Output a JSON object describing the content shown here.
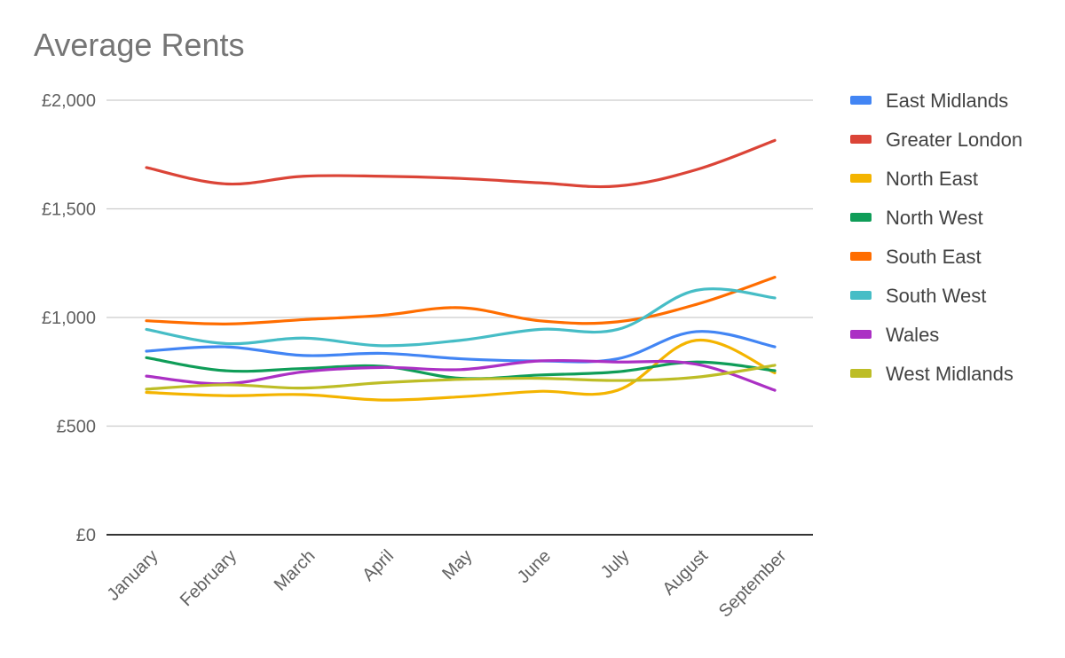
{
  "chart_data": {
    "type": "line",
    "title": "Average Rents",
    "xlabel": "",
    "ylabel": "",
    "ylim": [
      0,
      2000
    ],
    "yticks": [
      {
        "value": 0,
        "label": "£0"
      },
      {
        "value": 500,
        "label": "£500"
      },
      {
        "value": 1000,
        "label": "£1,000"
      },
      {
        "value": 1500,
        "label": "£1,500"
      },
      {
        "value": 2000,
        "label": "£2,000"
      }
    ],
    "categories": [
      "January",
      "February",
      "March",
      "April",
      "May",
      "June",
      "July",
      "August",
      "September"
    ],
    "grid": true,
    "legend_position": "right",
    "smooth": true,
    "series": [
      {
        "name": "East Midlands",
        "color": "#4285F4",
        "values": [
          845,
          865,
          825,
          835,
          810,
          800,
          810,
          935,
          865
        ]
      },
      {
        "name": "Greater London",
        "color": "#DB4437",
        "values": [
          1690,
          1615,
          1650,
          1650,
          1640,
          1620,
          1605,
          1680,
          1815
        ]
      },
      {
        "name": "North East",
        "color": "#F4B400",
        "values": [
          655,
          640,
          645,
          620,
          635,
          660,
          665,
          895,
          745
        ]
      },
      {
        "name": "North West",
        "color": "#0F9D58",
        "values": [
          815,
          755,
          765,
          775,
          720,
          735,
          750,
          795,
          755
        ]
      },
      {
        "name": "South East",
        "color": "#FF6D00",
        "values": [
          985,
          970,
          990,
          1010,
          1045,
          985,
          980,
          1060,
          1185
        ]
      },
      {
        "name": "South West",
        "color": "#46BDC6",
        "values": [
          945,
          880,
          905,
          870,
          895,
          945,
          945,
          1125,
          1090
        ]
      },
      {
        "name": "Wales",
        "color": "#AB30C4",
        "values": [
          730,
          695,
          750,
          770,
          760,
          800,
          795,
          785,
          665
        ]
      },
      {
        "name": "West Midlands",
        "color": "#BDBD26",
        "values": [
          670,
          690,
          675,
          700,
          715,
          720,
          710,
          725,
          780
        ]
      }
    ]
  }
}
